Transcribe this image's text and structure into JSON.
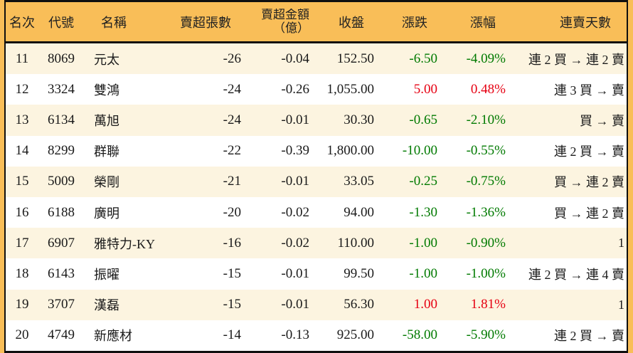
{
  "colors": {
    "frame_orange": "#f9be58",
    "row_alt_cream": "#fcf4e0",
    "row_white": "#ffffff",
    "border_black": "#0f0f0f",
    "up_red": "#e60012",
    "down_green": "#007a00",
    "text_black": "#1a1a1a"
  },
  "chart_data": {
    "type": "table",
    "title": "",
    "columns": [
      {
        "key": "rank",
        "label": "名次"
      },
      {
        "key": "code",
        "label": "代號"
      },
      {
        "key": "name",
        "label": "名稱"
      },
      {
        "key": "sell_volume",
        "label": "賣超張數"
      },
      {
        "key": "sell_amount",
        "label": "賣超金額",
        "sublabel": "（億）"
      },
      {
        "key": "close",
        "label": "收盤"
      },
      {
        "key": "change",
        "label": "漲跌"
      },
      {
        "key": "change_pct",
        "label": "漲幅"
      },
      {
        "key": "streak",
        "label": "連賣天數"
      }
    ],
    "rows": [
      {
        "rank": "11",
        "code": "8069",
        "name": "元太",
        "sell_volume": "-26",
        "sell_amount": "-0.04",
        "close": "152.50",
        "change": "-6.50",
        "change_pct": "-4.09%",
        "trend": "down",
        "streak": "連 2 買 → 連 2 賣"
      },
      {
        "rank": "12",
        "code": "3324",
        "name": "雙鴻",
        "sell_volume": "-24",
        "sell_amount": "-0.26",
        "close": "1,055.00",
        "change": "5.00",
        "change_pct": "0.48%",
        "trend": "up",
        "streak": "連 3 買 → 賣"
      },
      {
        "rank": "13",
        "code": "6134",
        "name": "萬旭",
        "sell_volume": "-24",
        "sell_amount": "-0.01",
        "close": "30.30",
        "change": "-0.65",
        "change_pct": "-2.10%",
        "trend": "down",
        "streak": "買 → 賣"
      },
      {
        "rank": "14",
        "code": "8299",
        "name": "群聯",
        "sell_volume": "-22",
        "sell_amount": "-0.39",
        "close": "1,800.00",
        "change": "-10.00",
        "change_pct": "-0.55%",
        "trend": "down",
        "streak": "連 2 買 → 賣"
      },
      {
        "rank": "15",
        "code": "5009",
        "name": "榮剛",
        "sell_volume": "-21",
        "sell_amount": "-0.01",
        "close": "33.05",
        "change": "-0.25",
        "change_pct": "-0.75%",
        "trend": "down",
        "streak": "買 → 連 2 賣"
      },
      {
        "rank": "16",
        "code": "6188",
        "name": "廣明",
        "sell_volume": "-20",
        "sell_amount": "-0.02",
        "close": "94.00",
        "change": "-1.30",
        "change_pct": "-1.36%",
        "trend": "down",
        "streak": "買 → 連 2 賣"
      },
      {
        "rank": "17",
        "code": "6907",
        "name": "雅特力-KY",
        "sell_volume": "-16",
        "sell_amount": "-0.02",
        "close": "110.00",
        "change": "-1.00",
        "change_pct": "-0.90%",
        "trend": "down",
        "streak": "1"
      },
      {
        "rank": "18",
        "code": "6143",
        "name": "振曜",
        "sell_volume": "-15",
        "sell_amount": "-0.01",
        "close": "99.50",
        "change": "-1.00",
        "change_pct": "-1.00%",
        "trend": "down",
        "streak": "連 2 買 → 連 4 賣"
      },
      {
        "rank": "19",
        "code": "3707",
        "name": "漢磊",
        "sell_volume": "-15",
        "sell_amount": "-0.01",
        "close": "56.30",
        "change": "1.00",
        "change_pct": "1.81%",
        "trend": "up",
        "streak": "1"
      },
      {
        "rank": "20",
        "code": "4749",
        "name": "新應材",
        "sell_volume": "-14",
        "sell_amount": "-0.13",
        "close": "925.00",
        "change": "-58.00",
        "change_pct": "-5.90%",
        "trend": "down",
        "streak": "連 2 買 → 賣"
      }
    ]
  }
}
